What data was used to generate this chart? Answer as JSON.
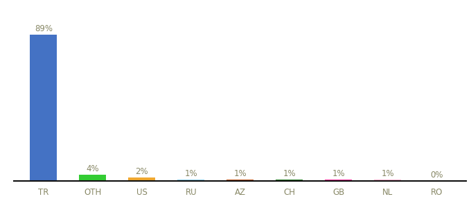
{
  "categories": [
    "TR",
    "OTH",
    "US",
    "RU",
    "AZ",
    "CH",
    "GB",
    "NL",
    "RO"
  ],
  "values": [
    89,
    4,
    2,
    1,
    1,
    1,
    1,
    1,
    0
  ],
  "labels": [
    "89%",
    "4%",
    "2%",
    "1%",
    "1%",
    "1%",
    "1%",
    "1%",
    "0%"
  ],
  "bar_colors": [
    "#4472c4",
    "#33cc33",
    "#f0a830",
    "#87ceeb",
    "#c05010",
    "#1a7a1a",
    "#ff2299",
    "#ffaacc",
    "#cccccc"
  ],
  "background_color": "#ffffff",
  "ylim": [
    0,
    100
  ],
  "label_fontsize": 8.5,
  "tick_fontsize": 8.5,
  "label_color": "#888866",
  "tick_color": "#888866",
  "bar_width": 0.55
}
